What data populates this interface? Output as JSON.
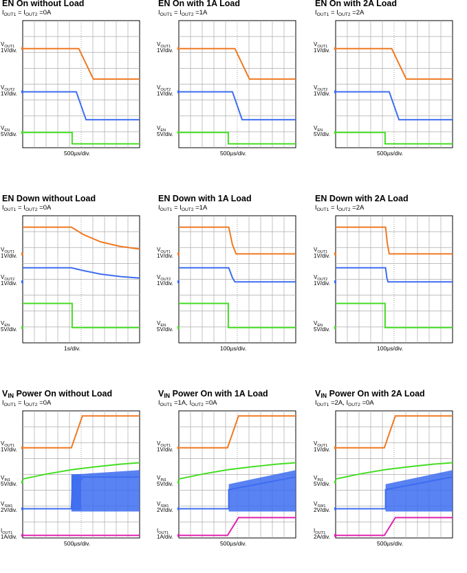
{
  "chart_data": [
    {
      "type": "line",
      "title": "EN On without Load",
      "subtitle": "IOUT1 = IOUT2 =0A",
      "timebase": "500µs/div.",
      "channels": [
        {
          "name": "VOUT1",
          "scale": "1V/div.",
          "color": "#f07820",
          "trace": [
            [
              0,
              0
            ],
            [
              2.3,
              0
            ],
            [
              2.9,
              1
            ],
            [
              4.8,
              1
            ]
          ]
        },
        {
          "name": "VOUT2",
          "scale": "1V/div.",
          "color": "#3c6cf0",
          "trace": [
            [
              0,
              0
            ],
            [
              2.2,
              0
            ],
            [
              2.6,
              1
            ],
            [
              4.8,
              1
            ]
          ]
        },
        {
          "name": "VEN",
          "scale": "5V/div.",
          "color": "#44dd22",
          "trace": [
            [
              0,
              0
            ],
            [
              2.03,
              0
            ],
            [
              2.03,
              1
            ],
            [
              4.8,
              1
            ]
          ]
        }
      ]
    },
    {
      "type": "line",
      "title": "EN On with 1A Load",
      "subtitle": "IOUT1 = IOUT2 =1A",
      "timebase": "500µs/div.",
      "channels": [
        {
          "name": "VOUT1",
          "scale": "1V/div.",
          "color": "#f07820",
          "trace": [
            [
              0,
              0
            ],
            [
              2.3,
              0
            ],
            [
              2.9,
              1
            ],
            [
              4.8,
              1
            ]
          ]
        },
        {
          "name": "VOUT2",
          "scale": "1V/div.",
          "color": "#3c6cf0",
          "trace": [
            [
              0,
              0
            ],
            [
              2.2,
              0
            ],
            [
              2.6,
              1
            ],
            [
              4.8,
              1
            ]
          ]
        },
        {
          "name": "VEN",
          "scale": "5V/div.",
          "color": "#44dd22",
          "trace": [
            [
              0,
              0
            ],
            [
              2.03,
              0
            ],
            [
              2.03,
              1
            ],
            [
              4.8,
              1
            ]
          ]
        }
      ]
    },
    {
      "type": "line",
      "title": "EN On with 2A Load",
      "subtitle": "IOUT1 = IOUT2 =2A",
      "timebase": "500µs/div.",
      "channels": [
        {
          "name": "VOUT1",
          "scale": "1V/div.",
          "color": "#f07820",
          "trace": [
            [
              0,
              0
            ],
            [
              2.3,
              0
            ],
            [
              2.9,
              1
            ],
            [
              4.8,
              1
            ]
          ]
        },
        {
          "name": "VOUT2",
          "scale": "1V/div.",
          "color": "#3c6cf0",
          "trace": [
            [
              0,
              0
            ],
            [
              2.2,
              0
            ],
            [
              2.6,
              1
            ],
            [
              4.8,
              1
            ]
          ]
        },
        {
          "name": "VEN",
          "scale": "5V/div.",
          "color": "#44dd22",
          "trace": [
            [
              0,
              0
            ],
            [
              2.03,
              0
            ],
            [
              2.03,
              1
            ],
            [
              4.8,
              1
            ]
          ]
        }
      ]
    },
    {
      "type": "line",
      "title": "EN Down without Load",
      "subtitle": "IOUT1 = IOUT2 =0A",
      "timebase": "1s/div.",
      "channels": [
        {
          "name": "VOUT1",
          "scale": "1V/div.",
          "color": "#f07820",
          "trace": [
            [
              0,
              1
            ],
            [
              2.0,
              1
            ],
            [
              2.5,
              0.72
            ],
            [
              3.2,
              0.45
            ],
            [
              4.0,
              0.28
            ],
            [
              4.8,
              0.18
            ]
          ]
        },
        {
          "name": "VOUT2",
          "scale": "1V/div.",
          "color": "#3c6cf0",
          "trace": [
            [
              0,
              1
            ],
            [
              2.0,
              1
            ],
            [
              2.5,
              0.8
            ],
            [
              3.2,
              0.55
            ],
            [
              4.0,
              0.38
            ],
            [
              4.8,
              0.27
            ]
          ]
        },
        {
          "name": "VEN",
          "scale": "5V/div.",
          "color": "#44dd22",
          "trace": [
            [
              0,
              1
            ],
            [
              2.03,
              1
            ],
            [
              2.03,
              0
            ],
            [
              4.8,
              0
            ]
          ]
        }
      ]
    },
    {
      "type": "line",
      "title": "EN Down with 1A Load",
      "subtitle": "IOUT1 = IOUT2 =1A",
      "timebase": "100µs/div.",
      "channels": [
        {
          "name": "VOUT1",
          "scale": "1V/div.",
          "color": "#f07820",
          "trace": [
            [
              0,
              1
            ],
            [
              2.05,
              1
            ],
            [
              2.2,
              0.35
            ],
            [
              2.35,
              0
            ],
            [
              4.8,
              0
            ]
          ]
        },
        {
          "name": "VOUT2",
          "scale": "1V/div.",
          "color": "#3c6cf0",
          "trace": [
            [
              0,
              1
            ],
            [
              2.05,
              1
            ],
            [
              2.2,
              0.3
            ],
            [
              2.3,
              0
            ],
            [
              4.8,
              0
            ]
          ]
        },
        {
          "name": "VEN",
          "scale": "5V/div.",
          "color": "#44dd22",
          "trace": [
            [
              0,
              1
            ],
            [
              2.03,
              1
            ],
            [
              2.03,
              0
            ],
            [
              4.8,
              0
            ]
          ]
        }
      ]
    },
    {
      "type": "line",
      "title": "EN Down with 2A Load",
      "subtitle": "IOUT1 = IOUT2 =2A",
      "timebase": "100µs/div.",
      "channels": [
        {
          "name": "VOUT1",
          "scale": "1V/div.",
          "color": "#f07820",
          "trace": [
            [
              0,
              1
            ],
            [
              2.05,
              1
            ],
            [
              2.12,
              0.4
            ],
            [
              2.2,
              0
            ],
            [
              4.8,
              0
            ]
          ]
        },
        {
          "name": "VOUT2",
          "scale": "1V/div.",
          "color": "#3c6cf0",
          "trace": [
            [
              0,
              1
            ],
            [
              2.05,
              1
            ],
            [
              2.1,
              0.3
            ],
            [
              2.15,
              0
            ],
            [
              4.8,
              0
            ]
          ]
        },
        {
          "name": "VEN",
          "scale": "5V/div.",
          "color": "#44dd22",
          "trace": [
            [
              0,
              1
            ],
            [
              2.03,
              1
            ],
            [
              2.03,
              0
            ],
            [
              4.8,
              0
            ]
          ]
        }
      ]
    },
    {
      "type": "line",
      "title": "VIN Power On without Load",
      "subtitle": "IOUT1 = IOUT2 =0A",
      "timebase": "500µs/div.",
      "channels": [
        {
          "name": "VOUT1",
          "scale": "1V/div.",
          "color": "#f07820",
          "trace": [
            [
              0,
              0
            ],
            [
              2.0,
              0
            ],
            [
              2.45,
              1
            ],
            [
              4.8,
              1
            ]
          ]
        },
        {
          "name": "VIN1",
          "scale": "5V/div.",
          "color": "#44dd22",
          "trace": [
            [
              0,
              0.15
            ],
            [
              1.0,
              0.4
            ],
            [
              2.0,
              0.6
            ],
            [
              3.0,
              0.75
            ],
            [
              4.0,
              0.88
            ],
            [
              4.8,
              0.95
            ]
          ]
        },
        {
          "name": "VSW1",
          "scale": "2V/div.",
          "color": "#3c6cf0",
          "trace": [
            [
              0,
              0
            ],
            [
              2.0,
              0
            ],
            [
              2.05,
              0.9
            ],
            [
              2.4,
              0.9
            ],
            [
              2.45,
              1
            ],
            [
              4.8,
              1
            ]
          ]
        },
        {
          "name": "IOUT1",
          "scale": "1A/div.",
          "color": "#e020b0",
          "trace": [
            [
              0,
              0
            ],
            [
              4.8,
              0
            ]
          ]
        }
      ]
    },
    {
      "type": "line",
      "title": "VIN Power On with 1A Load",
      "subtitle": "IOUT1 =1A, IOUT2 =0A",
      "timebase": "500µs/div.",
      "channels": [
        {
          "name": "VOUT1",
          "scale": "1V/div.",
          "color": "#f07820",
          "trace": [
            [
              0,
              0
            ],
            [
              2.0,
              0
            ],
            [
              2.45,
              1
            ],
            [
              4.8,
              1
            ]
          ]
        },
        {
          "name": "VIN1",
          "scale": "5V/div.",
          "color": "#44dd22",
          "trace": [
            [
              0,
              0.15
            ],
            [
              1.0,
              0.4
            ],
            [
              2.0,
              0.6
            ],
            [
              3.0,
              0.75
            ],
            [
              4.0,
              0.88
            ],
            [
              4.8,
              0.95
            ]
          ]
        },
        {
          "name": "VSW1",
          "scale": "2V/div.",
          "color": "#3c6cf0",
          "trace": [
            [
              0,
              0
            ],
            [
              2.05,
              0
            ],
            [
              2.05,
              0.6
            ],
            [
              4.8,
              1.0
            ]
          ]
        },
        {
          "name": "IOUT1",
          "scale": "1A/div.",
          "color": "#e020b0",
          "trace": [
            [
              0,
              0
            ],
            [
              2.0,
              0
            ],
            [
              2.45,
              1
            ],
            [
              4.8,
              1
            ]
          ]
        }
      ]
    },
    {
      "type": "line",
      "title": "VIN Power On with 2A Load",
      "subtitle": "IOUT1 =2A, IOUT2 =0A",
      "timebase": "500µs/div.",
      "channels": [
        {
          "name": "VOUT1",
          "scale": "1V/div.",
          "color": "#f07820",
          "trace": [
            [
              0,
              0
            ],
            [
              2.0,
              0
            ],
            [
              2.45,
              1
            ],
            [
              4.8,
              1
            ]
          ]
        },
        {
          "name": "VIN1",
          "scale": "5V/div.",
          "color": "#44dd22",
          "trace": [
            [
              0,
              0.15
            ],
            [
              1.0,
              0.4
            ],
            [
              2.0,
              0.6
            ],
            [
              3.0,
              0.75
            ],
            [
              4.0,
              0.88
            ],
            [
              4.8,
              0.95
            ]
          ]
        },
        {
          "name": "VSW1",
          "scale": "2V/div.",
          "color": "#3c6cf0",
          "trace": [
            [
              0,
              0
            ],
            [
              2.05,
              0
            ],
            [
              2.05,
              0.6
            ],
            [
              4.8,
              1.0
            ]
          ]
        },
        {
          "name": "IOUT1",
          "scale": "2A/div.",
          "color": "#e020b0",
          "trace": [
            [
              0,
              0
            ],
            [
              2.0,
              0
            ],
            [
              2.45,
              1
            ],
            [
              4.8,
              1
            ]
          ]
        }
      ]
    }
  ]
}
